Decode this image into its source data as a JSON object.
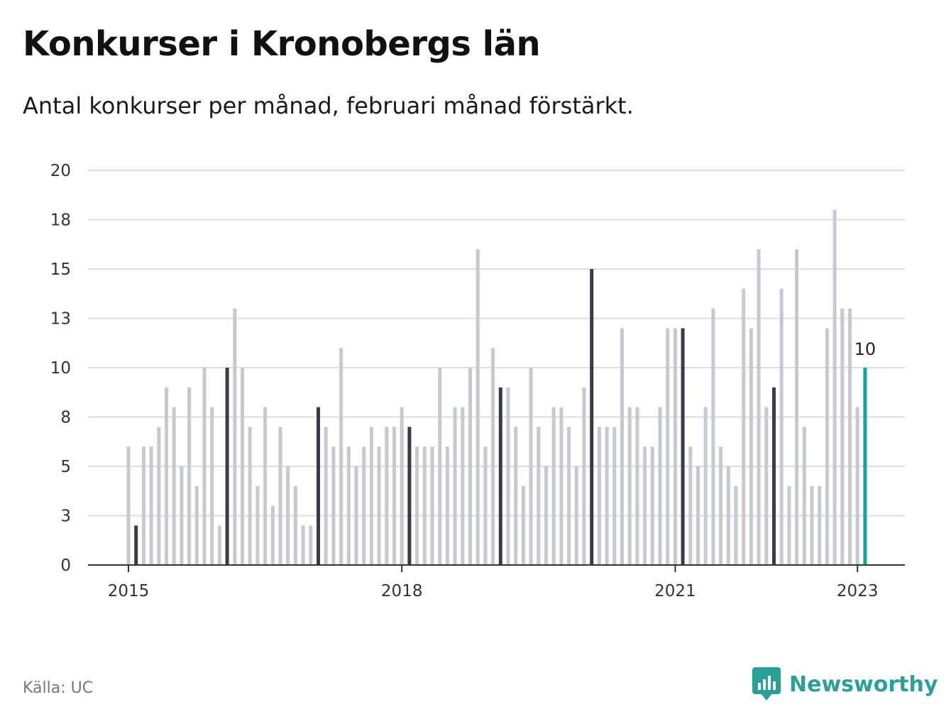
{
  "header": {
    "title": "Konkurser i Kronobergs län",
    "subtitle": "Antal konkurser per månad, februari månad förstärkt."
  },
  "footer": {
    "source": "Källa: UC",
    "brand": "Newsworthy"
  },
  "colors": {
    "bar": "#c8c8d0",
    "highlight": "#3b3a4a",
    "latest": "#16a39a",
    "grid": "#dddddd",
    "axis": "#333333",
    "brand": "#2aa198"
  },
  "icons": {
    "brand_logo": "chart-bubble-icon"
  },
  "chart_data": {
    "type": "bar",
    "ylim": [
      0,
      20
    ],
    "y_ticks": [
      {
        "value": 0,
        "label": "0"
      },
      {
        "value": 2.5,
        "label": "3"
      },
      {
        "value": 5,
        "label": "5"
      },
      {
        "value": 7.5,
        "label": "8"
      },
      {
        "value": 10,
        "label": "10"
      },
      {
        "value": 12.5,
        "label": "13"
      },
      {
        "value": 15,
        "label": "15"
      },
      {
        "value": 17.5,
        "label": "18"
      },
      {
        "value": 20,
        "label": "20"
      }
    ],
    "x_ticks": [
      {
        "date": "2015-01",
        "label": "2015"
      },
      {
        "date": "2018-01",
        "label": "2018"
      },
      {
        "date": "2021-01",
        "label": "2021"
      },
      {
        "date": "2023-01",
        "label": "2023"
      }
    ],
    "start": "2015-01",
    "highlight_month": "February",
    "grid": true,
    "latest_label": "10",
    "values": [
      6,
      2,
      6,
      6,
      7,
      9,
      8,
      5,
      9,
      4,
      10,
      8,
      2,
      10,
      13,
      10,
      7,
      4,
      8,
      3,
      7,
      5,
      4,
      2,
      2,
      8,
      7,
      6,
      11,
      6,
      5,
      6,
      7,
      6,
      7,
      7,
      8,
      7,
      6,
      6,
      6,
      10,
      6,
      8,
      8,
      10,
      16,
      6,
      11,
      9,
      9,
      7,
      4,
      10,
      7,
      5,
      8,
      8,
      7,
      5,
      9,
      15,
      7,
      7,
      7,
      12,
      8,
      8,
      6,
      6,
      8,
      12,
      12,
      12,
      6,
      5,
      8,
      13,
      6,
      5,
      4,
      14,
      12,
      16,
      8,
      9,
      14,
      4,
      16,
      7,
      4,
      4,
      12,
      18,
      13,
      13,
      8,
      10
    ]
  }
}
